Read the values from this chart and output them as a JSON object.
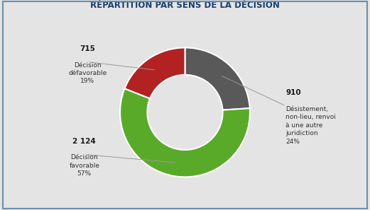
{
  "title": "RÉPARTITION PAR SENS DE LA DÉCISION",
  "slices": [
    {
      "label": "Désistement,\nnon-lieu, renvoi\nà une autre\njuridiction\n24%",
      "count": "910",
      "value": 24,
      "color": "#595959"
    },
    {
      "label": "Décision\nfavorable\n57%",
      "count": "2 124",
      "value": 57,
      "color": "#5aaa2a"
    },
    {
      "label": "Décision\ndéfavorable\n19%",
      "count": "715",
      "value": 19,
      "color": "#b22222"
    }
  ],
  "background_color": "#e4e4e4",
  "border_color": "#6a8faf",
  "title_color": "#1a3f6f",
  "label_bold_color": "#1a1a1a",
  "label_text_color": "#333333",
  "startangle": 90,
  "annotation_color": "#999999",
  "donut_width": 0.42
}
